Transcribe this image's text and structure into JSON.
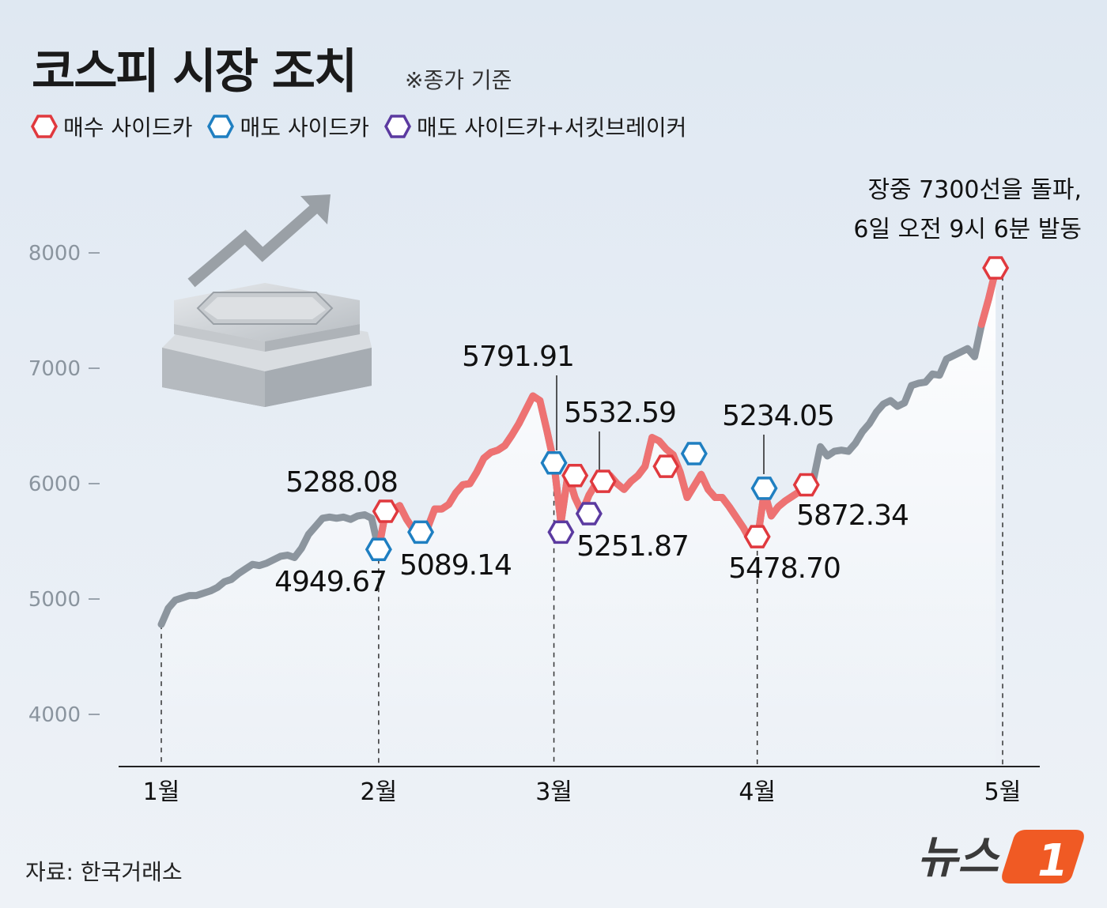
{
  "title": "코스피 시장 조치",
  "subtitle": "※종가 기준",
  "legend": [
    {
      "label": "매수 사이드카",
      "color": "#e0393e",
      "icon": "hexagon-outline-red"
    },
    {
      "label": "매도 사이드카",
      "color": "#1f7fc1",
      "icon": "hexagon-outline-blue"
    },
    {
      "label": "매도 사이드카+서킷브레이커",
      "color": "#5b3aa0",
      "icon": "hexagon-outline-purple"
    }
  ],
  "source": "자료: 한국거래소",
  "logo": {
    "text": "뉴스",
    "number": "1",
    "accent": "#f05a24"
  },
  "colors": {
    "rising": "#ee7272",
    "normal": "#8c959e",
    "buy": "#e0393e",
    "sell": "#1f7fc1",
    "circuit": "#5b3aa0"
  },
  "chart_data": {
    "type": "line",
    "title": "코스피 시장 조치",
    "xlabel": "",
    "ylabel": "",
    "ylim": [
      3500,
      8300
    ],
    "yticks": [
      4000,
      5000,
      6000,
      7000,
      8000
    ],
    "xticks": [
      {
        "label": "1월",
        "x": 1
      },
      {
        "label": "2월",
        "x": 32
      },
      {
        "label": "3월",
        "x": 57
      },
      {
        "label": "4월",
        "x": 86
      },
      {
        "label": "5월",
        "x": 121
      }
    ],
    "xlim": [
      -5,
      128
    ],
    "grid": false,
    "legend_position": "top-left",
    "series": [
      {
        "points": [
          [
            1,
            4780
          ],
          [
            2,
            4920
          ],
          [
            3,
            4990
          ],
          [
            4,
            5010
          ],
          [
            5,
            5030
          ],
          [
            6,
            5030
          ],
          [
            8,
            5070
          ],
          [
            9,
            5100
          ],
          [
            10,
            5150
          ],
          [
            11,
            5170
          ],
          [
            12,
            5220
          ],
          [
            13,
            5260
          ],
          [
            14,
            5300
          ],
          [
            15,
            5290
          ],
          [
            16,
            5310
          ],
          [
            17,
            5340
          ],
          [
            18,
            5370
          ],
          [
            19,
            5380
          ],
          [
            20,
            5360
          ],
          [
            21,
            5440
          ],
          [
            22,
            5560
          ],
          [
            23,
            5630
          ],
          [
            24,
            5700
          ],
          [
            25,
            5710
          ],
          [
            26,
            5700
          ],
          [
            27,
            5710
          ],
          [
            28,
            5690
          ],
          [
            29,
            5720
          ],
          [
            30,
            5730
          ],
          [
            31,
            5700
          ],
          [
            32,
            5430
          ],
          [
            33,
            5760
          ],
          [
            34,
            5770
          ],
          [
            35,
            5810
          ],
          [
            36,
            5690
          ],
          [
            37,
            5600
          ],
          [
            38,
            5580
          ],
          [
            39,
            5620
          ],
          [
            40,
            5780
          ],
          [
            41,
            5780
          ],
          [
            42,
            5820
          ],
          [
            43,
            5920
          ],
          [
            44,
            5990
          ],
          [
            45,
            6000
          ],
          [
            46,
            6100
          ],
          [
            47,
            6220
          ],
          [
            48,
            6270
          ],
          [
            49,
            6290
          ],
          [
            50,
            6330
          ],
          [
            51,
            6420
          ],
          [
            52,
            6520
          ],
          [
            53,
            6640
          ],
          [
            54,
            6760
          ],
          [
            55,
            6720
          ],
          [
            56,
            6460
          ],
          [
            57,
            6180
          ],
          [
            58,
            5660
          ],
          [
            59,
            6080
          ],
          [
            60,
            5880
          ],
          [
            61,
            5750
          ],
          [
            62,
            5900
          ],
          [
            63,
            6000
          ],
          [
            64,
            6040
          ],
          [
            65,
            6070
          ],
          [
            66,
            6000
          ],
          [
            67,
            5950
          ],
          [
            68,
            6020
          ],
          [
            69,
            6070
          ],
          [
            70,
            6150
          ],
          [
            71,
            6400
          ],
          [
            72,
            6370
          ],
          [
            73,
            6300
          ],
          [
            74,
            6250
          ],
          [
            75,
            6100
          ],
          [
            76,
            5880
          ],
          [
            77,
            5980
          ],
          [
            78,
            6080
          ],
          [
            79,
            5950
          ],
          [
            80,
            5880
          ],
          [
            81,
            5880
          ],
          [
            82,
            5800
          ],
          [
            84,
            5620
          ],
          [
            85,
            5510
          ],
          [
            86,
            5500
          ],
          [
            87,
            5930
          ],
          [
            88,
            5720
          ],
          [
            89,
            5800
          ],
          [
            90,
            5850
          ],
          [
            91,
            5890
          ],
          [
            92,
            5930
          ],
          [
            93,
            6000
          ],
          [
            94,
            6030
          ],
          [
            95,
            6320
          ],
          [
            96,
            6240
          ],
          [
            97,
            6280
          ],
          [
            98,
            6290
          ],
          [
            99,
            6280
          ],
          [
            100,
            6350
          ],
          [
            101,
            6450
          ],
          [
            102,
            6520
          ],
          [
            103,
            6620
          ],
          [
            104,
            6690
          ],
          [
            105,
            6720
          ],
          [
            106,
            6670
          ],
          [
            107,
            6700
          ],
          [
            108,
            6850
          ],
          [
            109,
            6870
          ],
          [
            110,
            6880
          ],
          [
            111,
            6950
          ],
          [
            112,
            6940
          ],
          [
            113,
            7080
          ],
          [
            114,
            7110
          ],
          [
            115,
            7140
          ],
          [
            116,
            7170
          ],
          [
            117,
            7100
          ],
          [
            118,
            7380
          ],
          [
            119,
            7600
          ],
          [
            120,
            7850
          ]
        ],
        "highlight_ranges": [
          [
            32,
            55
          ],
          [
            55,
            93
          ],
          [
            118,
            120
          ]
        ]
      }
    ],
    "events": [
      {
        "type": "sell_sidecar",
        "x": 32,
        "y": 5430,
        "label": "4949.67"
      },
      {
        "type": "buy_sidecar",
        "x": 33,
        "y": 5760,
        "label": "5288.08"
      },
      {
        "type": "sell_sidecar",
        "x": 38,
        "y": 5580,
        "label": "5089.14"
      },
      {
        "type": "sell_sidecar",
        "x": 57,
        "y": 6180,
        "label": "5791.91"
      },
      {
        "type": "circuit_breaker",
        "x": 58,
        "y": 5580,
        "label": ""
      },
      {
        "type": "buy_sidecar",
        "x": 60,
        "y": 6070,
        "label": ""
      },
      {
        "type": "circuit_breaker",
        "x": 62,
        "y": 5740,
        "label": "5251.87"
      },
      {
        "type": "buy_sidecar",
        "x": 64,
        "y": 6020,
        "label": "5532.59"
      },
      {
        "type": "buy_sidecar",
        "x": 73,
        "y": 6150,
        "label": ""
      },
      {
        "type": "sell_sidecar",
        "x": 77,
        "y": 6260,
        "label": ""
      },
      {
        "type": "buy_sidecar",
        "x": 86,
        "y": 5540,
        "label": "5478.70"
      },
      {
        "type": "sell_sidecar",
        "x": 87,
        "y": 5960,
        "label": "5234.05"
      },
      {
        "type": "buy_sidecar",
        "x": 93,
        "y": 5990,
        "label": "5872.34"
      },
      {
        "type": "buy_sidecar",
        "x": 120,
        "y": 7870,
        "label": ""
      }
    ],
    "annotations": [
      {
        "text": "장중 7300선을 돌파,",
        "x": 120,
        "y": 8530
      },
      {
        "text": "6일 오전 9시 6분 발동",
        "x": 120,
        "y": 8330
      }
    ]
  }
}
